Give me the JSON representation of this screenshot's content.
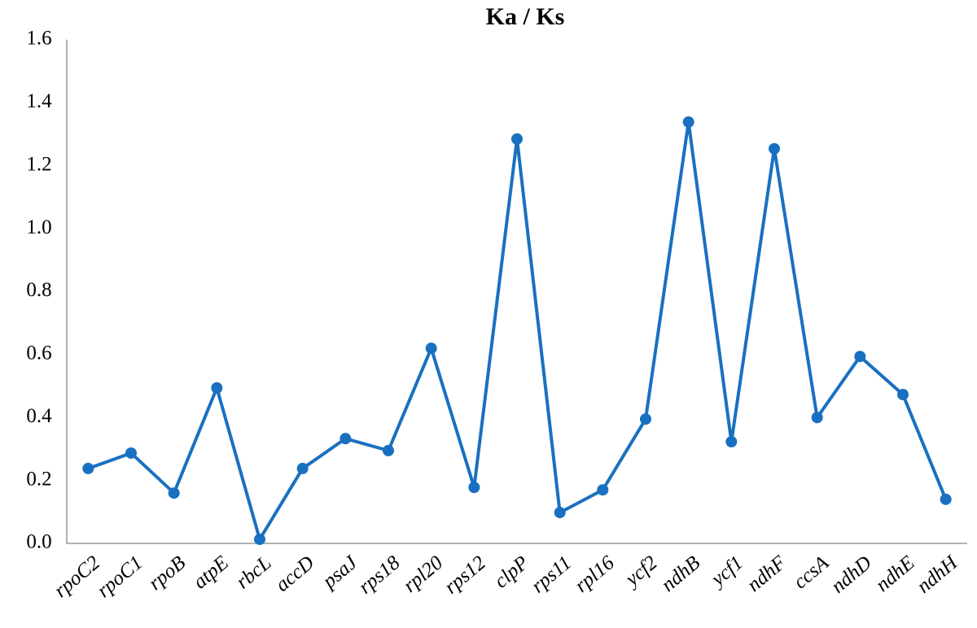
{
  "chart_data": {
    "type": "line",
    "title": "Ka / Ks",
    "categories": [
      "rpoC2",
      "rpoC1",
      "rpoB",
      "atpE",
      "rbcL",
      "accD",
      "psaJ",
      "rps18",
      "rpl20",
      "rps12",
      "clpP",
      "rps11",
      "rpl16",
      "ycf2",
      "ndhB",
      "ycf1",
      "ndhF",
      "ccsA",
      "ndhD",
      "ndhE",
      "ndhH"
    ],
    "values": [
      0.238,
      0.287,
      0.16,
      0.494,
      0.013,
      0.238,
      0.333,
      0.295,
      0.62,
      0.178,
      1.285,
      0.098,
      0.17,
      0.395,
      1.339,
      0.323,
      1.254,
      0.4,
      0.594,
      0.473,
      0.14
    ],
    "color": "#1a70c0",
    "ylim": [
      0,
      1.6
    ],
    "yticks": [
      {
        "value": 0,
        "label": "0.0"
      },
      0.2,
      0.4,
      0.6,
      0.8,
      {
        "value": 1,
        "label": "1.0"
      },
      1.2,
      1.4,
      1.6
    ],
    "grid": false
  }
}
